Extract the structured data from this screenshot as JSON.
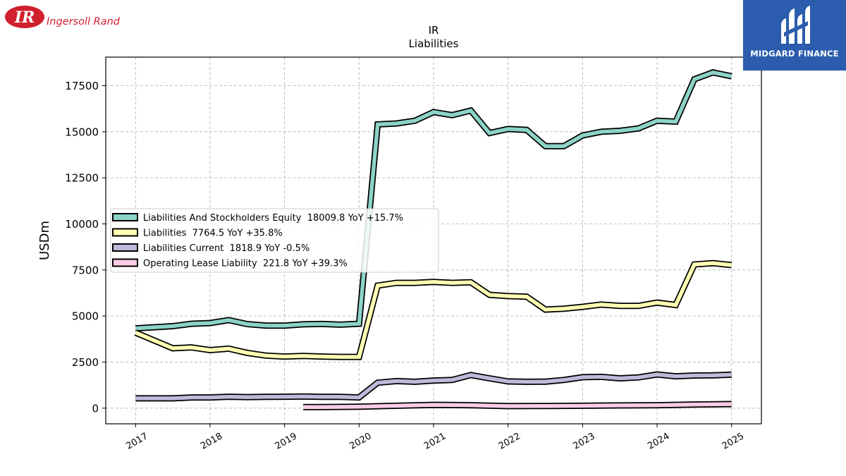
{
  "brand": {
    "left_logo_text": "Ingersoll Rand",
    "left_logo_mark": "IR",
    "right_logo_text": "MIDGARD FINANCE"
  },
  "colors": {
    "equity": "#8dd3c7",
    "liabilities": "#ffffb3",
    "current": "#bebada",
    "lease": "#fccde5",
    "ir_red": "#d0202e",
    "midgard_blue": "#2b5cad"
  },
  "chart_data": {
    "type": "line",
    "title": "IR",
    "subtitle": "Liabilities",
    "ylabel": "USDm",
    "xlabel": "",
    "xlim": [
      2016.6,
      2025.4
    ],
    "ylim": [
      -850,
      19050
    ],
    "yticks": [
      0,
      2500,
      5000,
      7500,
      10000,
      12500,
      15000,
      17500
    ],
    "xticks": [
      2017,
      2018,
      2019,
      2020,
      2021,
      2022,
      2023,
      2024,
      2025
    ],
    "grid": true,
    "legend_position": "center-left",
    "series": [
      {
        "name": "Liabilities And Stockholders Equity",
        "legend": "Liabilities And Stockholders Equity  18009.8 YoY +15.7%",
        "color_key": "equity",
        "points": [
          [
            2017.0,
            4330
          ],
          [
            2017.5,
            4450
          ],
          [
            2017.75,
            4580
          ],
          [
            2018.0,
            4620
          ],
          [
            2018.25,
            4780
          ],
          [
            2018.5,
            4560
          ],
          [
            2018.75,
            4480
          ],
          [
            2019.0,
            4480
          ],
          [
            2019.25,
            4550
          ],
          [
            2019.5,
            4570
          ],
          [
            2019.75,
            4530
          ],
          [
            2020.0,
            4580
          ],
          [
            2020.25,
            15400
          ],
          [
            2020.5,
            15450
          ],
          [
            2020.75,
            15600
          ],
          [
            2021.0,
            16070
          ],
          [
            2021.25,
            15900
          ],
          [
            2021.5,
            16150
          ],
          [
            2021.75,
            14930
          ],
          [
            2022.0,
            15150
          ],
          [
            2022.25,
            15100
          ],
          [
            2022.5,
            14220
          ],
          [
            2022.75,
            14220
          ],
          [
            2023.0,
            14800
          ],
          [
            2023.25,
            15000
          ],
          [
            2023.5,
            15050
          ],
          [
            2023.75,
            15180
          ],
          [
            2024.0,
            15600
          ],
          [
            2024.25,
            15550
          ],
          [
            2024.5,
            17850
          ],
          [
            2024.75,
            18220
          ],
          [
            2025.0,
            18010
          ]
        ]
      },
      {
        "name": "Liabilities",
        "legend": "Liabilities  7764.5 YoY +35.8%",
        "color_key": "liabilities",
        "points": [
          [
            2017.0,
            4100
          ],
          [
            2017.5,
            3250
          ],
          [
            2017.75,
            3300
          ],
          [
            2018.0,
            3150
          ],
          [
            2018.25,
            3230
          ],
          [
            2018.5,
            3000
          ],
          [
            2018.75,
            2850
          ],
          [
            2019.0,
            2800
          ],
          [
            2019.25,
            2830
          ],
          [
            2019.5,
            2800
          ],
          [
            2019.75,
            2780
          ],
          [
            2020.0,
            2780
          ],
          [
            2020.25,
            6650
          ],
          [
            2020.5,
            6800
          ],
          [
            2020.75,
            6800
          ],
          [
            2021.0,
            6850
          ],
          [
            2021.25,
            6800
          ],
          [
            2021.5,
            6830
          ],
          [
            2021.75,
            6150
          ],
          [
            2022.0,
            6080
          ],
          [
            2022.25,
            6050
          ],
          [
            2022.5,
            5350
          ],
          [
            2022.75,
            5400
          ],
          [
            2023.0,
            5500
          ],
          [
            2023.25,
            5620
          ],
          [
            2023.5,
            5550
          ],
          [
            2023.75,
            5550
          ],
          [
            2024.0,
            5730
          ],
          [
            2024.25,
            5600
          ],
          [
            2024.5,
            7800
          ],
          [
            2024.75,
            7870
          ],
          [
            2025.0,
            7760
          ]
        ]
      },
      {
        "name": "Liabilities Current",
        "legend": "Liabilities Current  1818.9 YoY -0.5%",
        "color_key": "current",
        "points": [
          [
            2017.0,
            530
          ],
          [
            2017.5,
            530
          ],
          [
            2017.75,
            580
          ],
          [
            2018.0,
            580
          ],
          [
            2018.25,
            620
          ],
          [
            2018.5,
            600
          ],
          [
            2018.75,
            610
          ],
          [
            2019.0,
            620
          ],
          [
            2019.25,
            630
          ],
          [
            2019.5,
            610
          ],
          [
            2019.75,
            610
          ],
          [
            2020.0,
            580
          ],
          [
            2020.25,
            1380
          ],
          [
            2020.5,
            1470
          ],
          [
            2020.75,
            1430
          ],
          [
            2021.0,
            1500
          ],
          [
            2021.25,
            1530
          ],
          [
            2021.5,
            1800
          ],
          [
            2021.75,
            1620
          ],
          [
            2022.0,
            1450
          ],
          [
            2022.25,
            1430
          ],
          [
            2022.5,
            1440
          ],
          [
            2022.75,
            1530
          ],
          [
            2023.0,
            1680
          ],
          [
            2023.25,
            1700
          ],
          [
            2023.5,
            1620
          ],
          [
            2023.75,
            1670
          ],
          [
            2024.0,
            1830
          ],
          [
            2024.25,
            1730
          ],
          [
            2024.5,
            1770
          ],
          [
            2024.75,
            1780
          ],
          [
            2025.0,
            1820
          ]
        ]
      },
      {
        "name": "Operating Lease Liability",
        "legend": "Operating Lease Liability  221.8 YoY +39.3%",
        "color_key": "lease",
        "points": [
          [
            2019.25,
            60
          ],
          [
            2019.5,
            60
          ],
          [
            2019.75,
            70
          ],
          [
            2020.0,
            80
          ],
          [
            2020.5,
            130
          ],
          [
            2021.0,
            180
          ],
          [
            2021.5,
            160
          ],
          [
            2022.0,
            110
          ],
          [
            2022.5,
            120
          ],
          [
            2023.0,
            130
          ],
          [
            2023.5,
            150
          ],
          [
            2024.0,
            160
          ],
          [
            2024.5,
            200
          ],
          [
            2025.0,
            222
          ]
        ]
      }
    ]
  }
}
